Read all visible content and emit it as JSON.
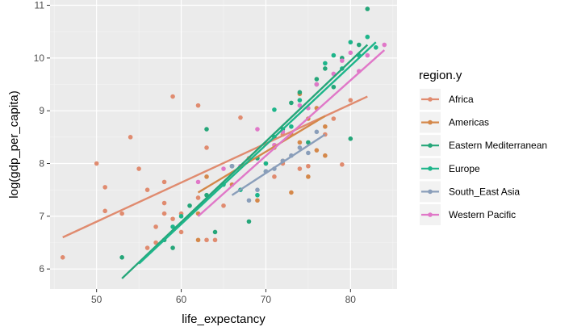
{
  "chart_data": {
    "type": "scatter",
    "title": "",
    "xlabel": "life_expectancy",
    "ylabel": "log(gdp_per_capita)",
    "xlim": [
      44.5,
      85.5
    ],
    "ylim": [
      5.62,
      11.1
    ],
    "x_ticks": [
      50,
      60,
      70,
      80
    ],
    "y_ticks": [
      6,
      7,
      8,
      9,
      10,
      11
    ],
    "x_tick_labels": [
      "50",
      "60",
      "70",
      "80"
    ],
    "y_tick_labels": [
      "6",
      "7",
      "8",
      "9",
      "10",
      "11"
    ],
    "grid": true,
    "legend_title": "region.y",
    "legend_position": "right",
    "series": [
      {
        "name": "Africa",
        "color": "#E08B6F",
        "fit": [
          [
            46,
            6.6
          ],
          [
            82,
            9.27
          ]
        ],
        "points": [
          [
            46,
            6.22
          ],
          [
            50,
            8.0
          ],
          [
            51,
            7.55
          ],
          [
            51,
            7.1
          ],
          [
            53,
            7.05
          ],
          [
            54,
            8.5
          ],
          [
            55,
            7.9
          ],
          [
            56,
            7.5
          ],
          [
            56,
            6.4
          ],
          [
            57,
            6.8
          ],
          [
            57,
            6.5
          ],
          [
            58,
            7.65
          ],
          [
            58,
            7.25
          ],
          [
            58,
            7.05
          ],
          [
            59,
            9.27
          ],
          [
            59,
            6.95
          ],
          [
            60,
            7.05
          ],
          [
            60,
            6.7
          ],
          [
            62,
            9.1
          ],
          [
            62,
            7.35
          ],
          [
            63,
            8.3
          ],
          [
            63,
            6.55
          ],
          [
            64,
            6.55
          ],
          [
            65,
            7.2
          ],
          [
            67,
            8.87
          ],
          [
            68,
            8.1
          ],
          [
            71,
            7.75
          ],
          [
            72,
            8.55
          ],
          [
            72,
            8.0
          ],
          [
            74,
            7.9
          ],
          [
            75,
            7.95
          ],
          [
            77,
            8.55
          ],
          [
            78,
            8.85
          ],
          [
            79,
            7.98
          ],
          [
            80,
            9.2
          ]
        ]
      },
      {
        "name": "Americas",
        "color": "#D4884A",
        "fit": [
          [
            62,
            7.45
          ],
          [
            77,
            8.9
          ]
        ],
        "points": [
          [
            62,
            7.05
          ],
          [
            62,
            6.55
          ],
          [
            63,
            7.75
          ],
          [
            66,
            7.6
          ],
          [
            69,
            7.3
          ],
          [
            70,
            8.0
          ],
          [
            71,
            8.3
          ],
          [
            72,
            8.05
          ],
          [
            73,
            8.55
          ],
          [
            73,
            7.45
          ],
          [
            74,
            9.32
          ],
          [
            74,
            8.4
          ],
          [
            75,
            7.75
          ],
          [
            75,
            8.85
          ],
          [
            76,
            9.05
          ],
          [
            76,
            8.25
          ],
          [
            77,
            8.7
          ],
          [
            77,
            8.15
          ]
        ]
      },
      {
        "name": "Eastern Mediterranean",
        "color": "#25A679",
        "fit": [
          [
            53,
            5.82
          ],
          [
            82,
            10.25
          ]
        ],
        "points": [
          [
            53,
            6.22
          ],
          [
            58,
            6.55
          ],
          [
            59,
            6.4
          ],
          [
            61,
            7.2
          ],
          [
            63,
            8.65
          ],
          [
            63,
            7.4
          ],
          [
            64,
            6.7
          ],
          [
            66,
            7.95
          ],
          [
            68,
            6.9
          ],
          [
            69,
            8.1
          ],
          [
            70,
            7.85
          ],
          [
            71,
            8.5
          ],
          [
            72,
            8.65
          ],
          [
            73,
            9.15
          ],
          [
            74,
            9.35
          ],
          [
            75,
            8.4
          ],
          [
            76,
            9.6
          ],
          [
            77,
            9.8
          ],
          [
            78,
            9.45
          ],
          [
            79,
            10.0
          ],
          [
            80,
            8.47
          ],
          [
            81,
            10.25
          ],
          [
            82,
            10.93
          ]
        ]
      },
      {
        "name": "Europe",
        "color": "#1DB58A",
        "fit": [
          [
            55,
            6.1
          ],
          [
            83,
            10.3
          ]
        ],
        "points": [
          [
            59,
            6.8
          ],
          [
            60,
            7.0
          ],
          [
            65,
            7.6
          ],
          [
            67,
            7.5
          ],
          [
            69,
            7.4
          ],
          [
            70,
            8.0
          ],
          [
            71,
            9.02
          ],
          [
            73,
            8.7
          ],
          [
            74,
            9.2
          ],
          [
            76,
            9.5
          ],
          [
            77,
            9.9
          ],
          [
            78,
            10.05
          ],
          [
            79,
            9.8
          ],
          [
            80,
            10.3
          ],
          [
            81,
            10.05
          ],
          [
            82,
            10.4
          ],
          [
            83,
            10.2
          ]
        ]
      },
      {
        "name": "South_East Asia",
        "color": "#8A9EBA",
        "fit": [
          [
            66,
            7.4
          ],
          [
            77,
            8.55
          ]
        ],
        "points": [
          [
            66,
            7.95
          ],
          [
            68,
            7.3
          ],
          [
            69,
            7.5
          ],
          [
            70,
            7.85
          ],
          [
            71,
            7.9
          ],
          [
            72,
            8.05
          ],
          [
            73,
            8.15
          ],
          [
            74,
            8.3
          ],
          [
            75,
            8.2
          ],
          [
            76,
            8.6
          ]
        ]
      },
      {
        "name": "Western Pacific",
        "color": "#E078C8",
        "fit": [
          [
            62,
            7.0
          ],
          [
            84,
            10.15
          ]
        ],
        "points": [
          [
            62,
            7.65
          ],
          [
            65,
            7.9
          ],
          [
            67,
            7.95
          ],
          [
            69,
            8.65
          ],
          [
            71,
            8.35
          ],
          [
            72,
            8.6
          ],
          [
            74,
            9.1
          ],
          [
            75,
            9.05
          ],
          [
            76,
            9.5
          ],
          [
            78,
            9.7
          ],
          [
            79,
            9.95
          ],
          [
            80,
            10.1
          ],
          [
            81,
            9.75
          ],
          [
            82,
            10.05
          ],
          [
            84,
            10.25
          ]
        ]
      }
    ]
  }
}
